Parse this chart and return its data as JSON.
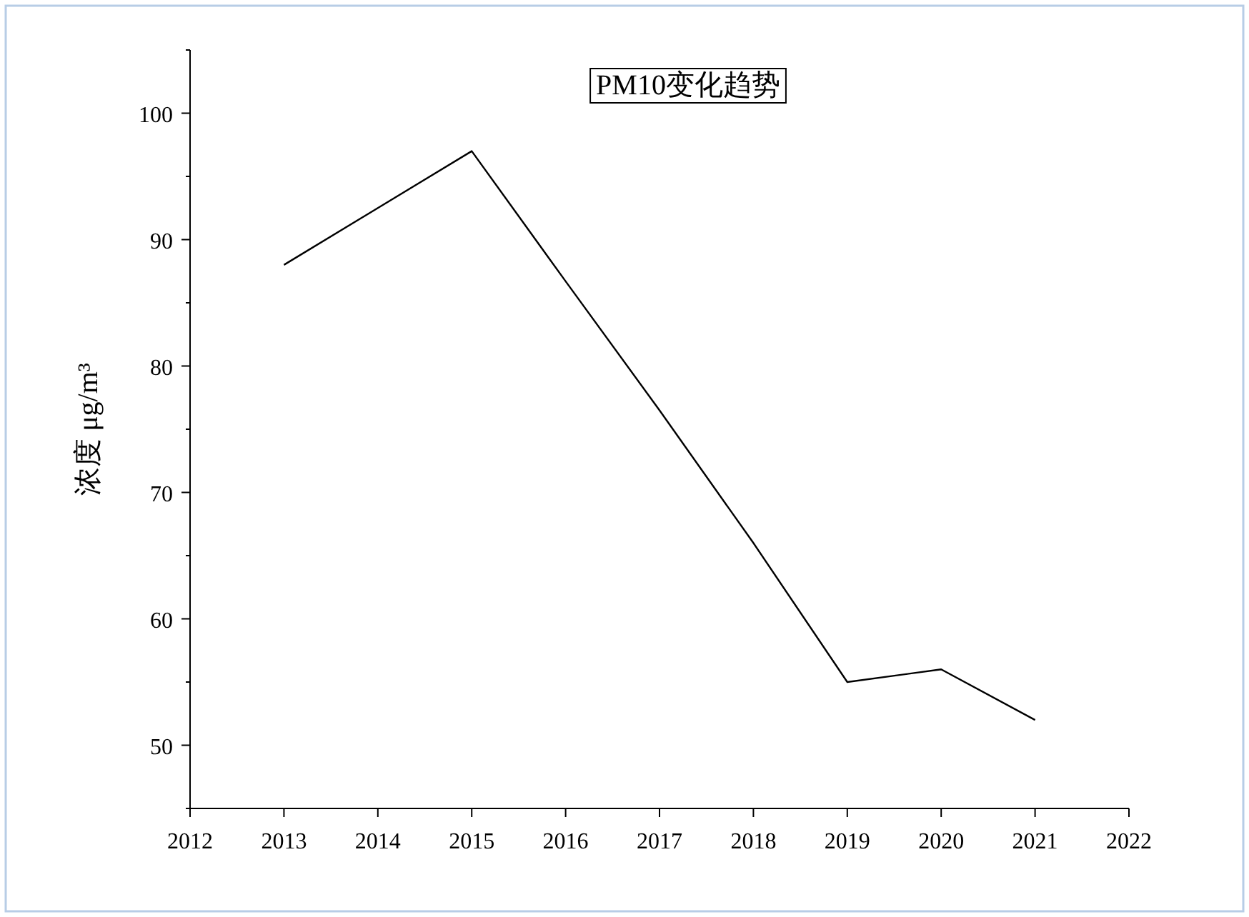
{
  "chart_data": {
    "type": "line",
    "title": "PM10变化趋势",
    "ylabel": "浓度 μg/m³",
    "x": [
      2013,
      2014,
      2015,
      2016,
      2017,
      2018,
      2019,
      2020,
      2021
    ],
    "series": [
      {
        "color": "#000000",
        "values": [
          88,
          92.5,
          97,
          86.7,
          76.5,
          66,
          55,
          56,
          52
        ]
      }
    ],
    "xlim": [
      2012,
      2022
    ],
    "xticks": [
      2012,
      2013,
      2014,
      2015,
      2016,
      2017,
      2018,
      2019,
      2020,
      2021,
      2022
    ],
    "ylim": [
      45,
      105
    ],
    "yticks": [
      {
        "value": 45,
        "label": null
      },
      50,
      {
        "value": 55,
        "label": null
      },
      60,
      {
        "value": 65,
        "label": null
      },
      70,
      {
        "value": 75,
        "label": null
      },
      80,
      {
        "value": 85,
        "label": null
      },
      90,
      {
        "value": 95,
        "label": null
      },
      100,
      {
        "value": 105,
        "label": null
      }
    ],
    "grid": false,
    "marker": "none",
    "line_style": "solid"
  }
}
